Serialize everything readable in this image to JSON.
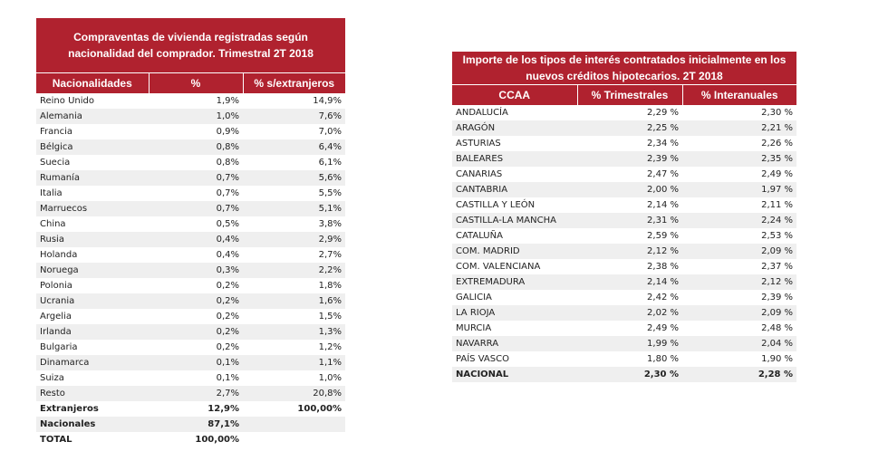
{
  "nationality_table": {
    "title": "Compraventas de vivienda registradas según nacionalidad del comprador. Trimestral 2T 2018",
    "headers": [
      "Nacionalidades",
      "%",
      "% s/extranjeros"
    ],
    "rows": [
      [
        "Reino Unido",
        "1,9%",
        "14,9%"
      ],
      [
        "Alemania",
        "1,0%",
        "7,6%"
      ],
      [
        "Francia",
        "0,9%",
        "7,0%"
      ],
      [
        "Bélgica",
        "0,8%",
        "6,4%"
      ],
      [
        "Suecia",
        "0,8%",
        "6,1%"
      ],
      [
        "Rumanía",
        "0,7%",
        "5,6%"
      ],
      [
        "Italia",
        "0,7%",
        "5,5%"
      ],
      [
        "Marruecos",
        "0,7%",
        "5,1%"
      ],
      [
        "China",
        "0,5%",
        "3,8%"
      ],
      [
        "Rusia",
        "0,4%",
        "2,9%"
      ],
      [
        "Holanda",
        "0,4%",
        "2,7%"
      ],
      [
        "Noruega",
        "0,3%",
        "2,2%"
      ],
      [
        "Polonia",
        "0,2%",
        "1,8%"
      ],
      [
        "Ucrania",
        "0,2%",
        "1,6%"
      ],
      [
        "Argelia",
        "0,2%",
        "1,5%"
      ],
      [
        "Irlanda",
        "0,2%",
        "1,3%"
      ],
      [
        "Bulgaria",
        "0,2%",
        "1,2%"
      ],
      [
        "Dinamarca",
        "0,1%",
        "1,1%"
      ],
      [
        "Suiza",
        "0,1%",
        "1,0%"
      ],
      [
        "Resto",
        "2,7%",
        "20,8%"
      ],
      [
        "Extranjeros",
        "12,9%",
        "100,00%"
      ],
      [
        "Nacionales",
        "87,1%",
        ""
      ],
      [
        "TOTAL",
        "100,00%",
        ""
      ]
    ]
  },
  "interest_table": {
    "title": "Importe de los tipos de interés contratados inicialmente en los nuevos créditos hipotecarios.  2T 2018",
    "headers": [
      "CCAA",
      "% Trimestrales",
      "% Interanuales"
    ],
    "rows": [
      [
        "ANDALUCÍA",
        "2,29 %",
        "2,30 %"
      ],
      [
        "ARAGÓN",
        "2,25 %",
        "2,21 %"
      ],
      [
        "ASTURIAS",
        "2,34 %",
        "2,26 %"
      ],
      [
        "BALEARES",
        "2,39 %",
        "2,35 %"
      ],
      [
        "CANARIAS",
        "2,47 %",
        "2,49 %"
      ],
      [
        "CANTABRIA",
        "2,00 %",
        "1,97 %"
      ],
      [
        "CASTILLA Y LEÓN",
        "2,14 %",
        "2,11 %"
      ],
      [
        "CASTILLA-LA MANCHA",
        "2,31 %",
        "2,24 %"
      ],
      [
        "CATALUÑA",
        "2,59 %",
        "2,53 %"
      ],
      [
        "COM. MADRID",
        "2,12 %",
        "2,09 %"
      ],
      [
        "COM. VALENCIANA",
        "2,38 %",
        "2,37 %"
      ],
      [
        "EXTREMADURA",
        "2,14 %",
        "2,12 %"
      ],
      [
        "GALICIA",
        "2,42 %",
        "2,39 %"
      ],
      [
        "LA RIOJA",
        "2,02 %",
        "2,09 %"
      ],
      [
        "MURCIA",
        "2,49 %",
        "2,48 %"
      ],
      [
        "NAVARRA",
        "1,99 %",
        "2,04 %"
      ],
      [
        "PAÍS VASCO",
        "1,80 %",
        "1,90 %"
      ],
      [
        "NACIONAL",
        "2,30 %",
        "2,28 %"
      ]
    ]
  },
  "colors": {
    "header_bg": "#b0222f",
    "header_text": "#ffffff",
    "stripe": "#efefef"
  }
}
